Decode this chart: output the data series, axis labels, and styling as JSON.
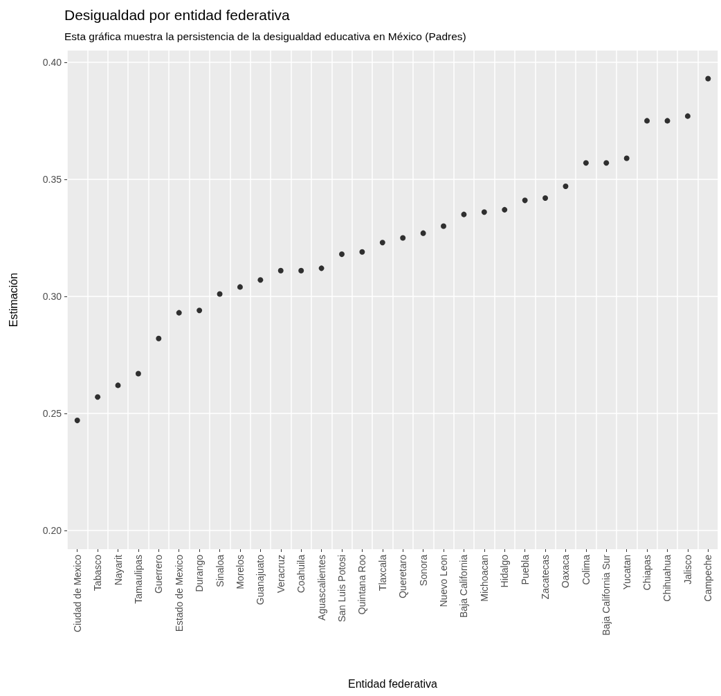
{
  "chart_data": {
    "type": "scatter",
    "title": "Desigualdad por entidad federativa",
    "subtitle": "Esta gráfica muestra la persistencia de la desigualdad educativa en México (Padres)",
    "xlabel": "Entidad federativa",
    "ylabel": "Estimación",
    "categories": [
      "Ciudad de Mexico",
      "Tabasco",
      "Nayarit",
      "Tamaulipas",
      "Guerrero",
      "Estado de Mexico",
      "Durango",
      "Sinaloa",
      "Morelos",
      "Guanajuato",
      "Veracruz",
      "Coahuila",
      "Aguascalientes",
      "San Luis Potosi",
      "Quintana Roo",
      "Tlaxcala",
      "Queretaro",
      "Sonora",
      "Nuevo Leon",
      "Baja California",
      "Michoacan",
      "Hidalgo",
      "Puebla",
      "Zacatecas",
      "Oaxaca",
      "Colima",
      "Baja California Sur",
      "Yucatan",
      "Chiapas",
      "Chihuahua",
      "Jalisco",
      "Campeche"
    ],
    "values": [
      0.247,
      0.257,
      0.262,
      0.267,
      0.282,
      0.293,
      0.294,
      0.301,
      0.304,
      0.307,
      0.311,
      0.311,
      0.312,
      0.318,
      0.319,
      0.323,
      0.325,
      0.327,
      0.33,
      0.335,
      0.336,
      0.337,
      0.341,
      0.342,
      0.347,
      0.357,
      0.357,
      0.359,
      0.375,
      0.375,
      0.377,
      0.393
    ],
    "color": "#000000",
    "marker": "circle",
    "ylim": [
      0.192,
      0.405
    ],
    "yticks": [
      {
        "value": 0.2,
        "label": "0.20"
      },
      {
        "value": 0.25,
        "label": "0.25"
      },
      {
        "value": 0.3,
        "label": "0.30"
      },
      {
        "value": 0.35,
        "label": "0.35"
      },
      {
        "value": 0.4,
        "label": "0.40"
      }
    ],
    "grid": true
  }
}
